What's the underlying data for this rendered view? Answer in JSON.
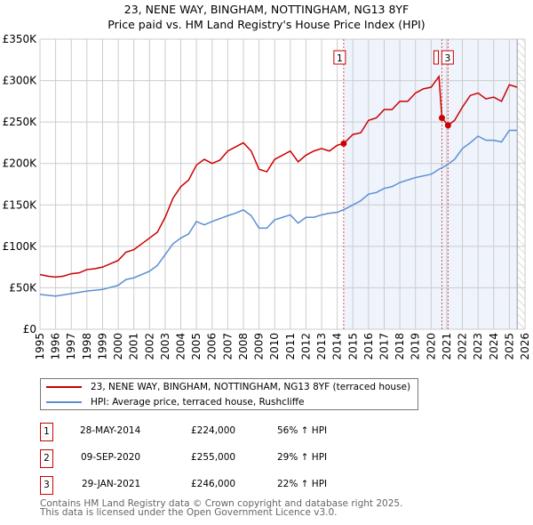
{
  "title": "23, NENE WAY, BINGHAM, NOTTINGHAM, NG13 8YF",
  "subtitle": "Price paid vs. HM Land Registry's House Price Index (HPI)",
  "chart_data": {
    "type": "line",
    "xlim": [
      1995,
      2026
    ],
    "ylim": [
      0,
      350000
    ],
    "x_ticks": [
      "1995",
      "1996",
      "1997",
      "1998",
      "1999",
      "2000",
      "2001",
      "2002",
      "2003",
      "2004",
      "2005",
      "2006",
      "2007",
      "2008",
      "2009",
      "2010",
      "2011",
      "2012",
      "2013",
      "2014",
      "2015",
      "2016",
      "2017",
      "2018",
      "2019",
      "2020",
      "2021",
      "2022",
      "2023",
      "2024",
      "2025",
      "2026"
    ],
    "y_ticks": [
      {
        "v": 0,
        "label": "£0"
      },
      {
        "v": 50000,
        "label": "£50K"
      },
      {
        "v": 100000,
        "label": "£100K"
      },
      {
        "v": 150000,
        "label": "£150K"
      },
      {
        "v": 200000,
        "label": "£200K"
      },
      {
        "v": 250000,
        "label": "£250K"
      },
      {
        "v": 300000,
        "label": "£300K"
      },
      {
        "v": 350000,
        "label": "£350K"
      }
    ],
    "grid": true,
    "shaded_region": [
      2014.41,
      2025.5
    ],
    "hatched_region": [
      2025.5,
      2026
    ],
    "series": [
      {
        "name": "23, NENE WAY, BINGHAM, NOTTINGHAM, NG13 8YF (terraced house)",
        "color": "#cc0000",
        "x": [
          1995,
          1995.5,
          1996,
          1996.5,
          1997,
          1997.5,
          1998,
          1998.5,
          1999,
          1999.5,
          2000,
          2000.5,
          2001,
          2001.5,
          2002,
          2002.5,
          2003,
          2003.5,
          2004,
          2004.5,
          2005,
          2005.5,
          2006,
          2006.5,
          2007,
          2007.5,
          2008,
          2008.5,
          2009,
          2009.5,
          2010,
          2010.5,
          2011,
          2011.5,
          2012,
          2012.5,
          2013,
          2013.5,
          2014,
          2014.41,
          2015,
          2015.5,
          2016,
          2016.5,
          2017,
          2017.5,
          2018,
          2018.5,
          2019,
          2019.5,
          2020,
          2020.5,
          2020.69,
          2021.08,
          2021.5,
          2022,
          2022.5,
          2023,
          2023.5,
          2024,
          2024.5,
          2025,
          2025.5
        ],
        "y": [
          66000,
          64000,
          63000,
          64000,
          67000,
          68000,
          72000,
          73000,
          75000,
          79000,
          83000,
          93000,
          96000,
          103000,
          110000,
          117000,
          135000,
          158000,
          172000,
          180000,
          198000,
          205000,
          200000,
          204000,
          215000,
          220000,
          225000,
          215000,
          193000,
          190000,
          205000,
          210000,
          215000,
          202000,
          210000,
          215000,
          218000,
          215000,
          222000,
          224000,
          235000,
          237000,
          252000,
          255000,
          265000,
          265000,
          275000,
          275000,
          285000,
          290000,
          292000,
          305000,
          255000,
          246000,
          252000,
          268000,
          282000,
          285000,
          278000,
          280000,
          275000,
          295000,
          292000
        ]
      },
      {
        "name": "HPI: Average price, terraced house, Rushcliffe",
        "color": "#5b8fd4",
        "x": [
          1995,
          1996,
          1997,
          1998,
          1999,
          2000,
          2000.5,
          2001,
          2002,
          2002.5,
          2003,
          2003.5,
          2004,
          2004.5,
          2005,
          2005.5,
          2006,
          2007,
          2007.5,
          2008,
          2008.5,
          2009,
          2009.5,
          2010,
          2010.5,
          2011,
          2011.5,
          2012,
          2012.5,
          2013,
          2013.5,
          2014,
          2014.5,
          2015,
          2015.5,
          2016,
          2016.5,
          2017,
          2017.5,
          2018,
          2018.5,
          2019,
          2019.5,
          2020,
          2020.5,
          2021,
          2021.5,
          2022,
          2022.5,
          2023,
          2023.5,
          2024,
          2024.5,
          2025,
          2025.5
        ],
        "y": [
          42000,
          40000,
          43000,
          46000,
          48000,
          53000,
          60000,
          62000,
          70000,
          77000,
          90000,
          103000,
          110000,
          115000,
          130000,
          126000,
          130000,
          137000,
          140000,
          144000,
          137000,
          122000,
          122000,
          132000,
          135000,
          138000,
          128000,
          135000,
          135000,
          138000,
          140000,
          141000,
          145000,
          150000,
          155000,
          163000,
          165000,
          170000,
          172000,
          177000,
          180000,
          183000,
          185000,
          187000,
          193000,
          198000,
          205000,
          218000,
          225000,
          233000,
          228000,
          228000,
          226000,
          240000,
          240000
        ]
      }
    ],
    "sales": [
      {
        "id": "1",
        "x": 2014.41,
        "y": 224000,
        "date": "28-MAY-2014",
        "price": "£224,000",
        "hpi": "56% ↑ HPI"
      },
      {
        "id": "2",
        "x": 2020.69,
        "y": 255000,
        "date": "09-SEP-2020",
        "price": "£255,000",
        "hpi": "29% ↑ HPI"
      },
      {
        "id": "3",
        "x": 2021.08,
        "y": 246000,
        "date": "29-JAN-2021",
        "price": "£246,000",
        "hpi": "22% ↑ HPI"
      }
    ]
  },
  "footer": [
    "Contains HM Land Registry data © Crown copyright and database right 2025.",
    "This data is licensed under the Open Government Licence v3.0."
  ]
}
